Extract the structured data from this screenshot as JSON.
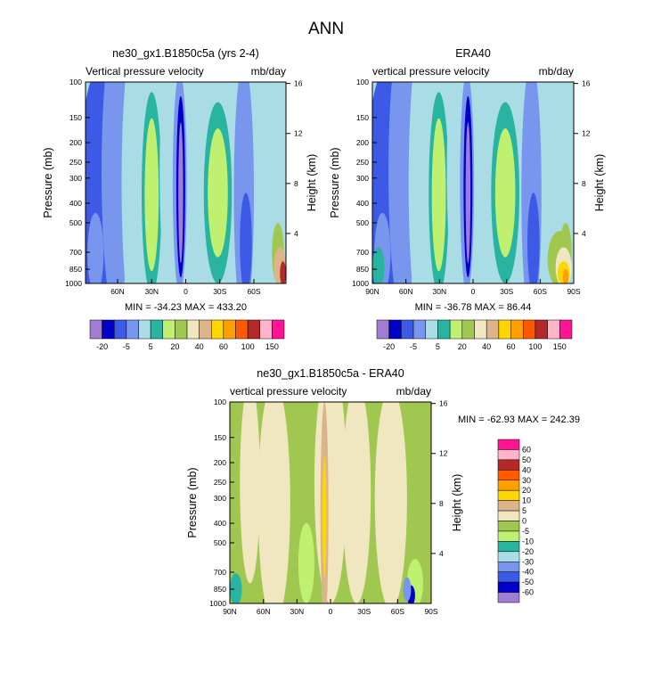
{
  "figure_title": "ANN",
  "chart_data": [
    {
      "type": "heatmap",
      "id": "model",
      "title": "ne30_gx1.B1850c5a (yrs 2-4)",
      "field_label": "Vertical pressure velocity",
      "units": "mb/day",
      "ylabel": "Pressure (mb)",
      "y2label": "Height (km)",
      "xlabel": "",
      "x_ticks": [
        "60N",
        "30N",
        "0",
        "30S",
        "60S"
      ],
      "y_ticks": [
        "100",
        "150",
        "200",
        "250",
        "300",
        "400",
        "500",
        "700",
        "850",
        "1000"
      ],
      "y2_ticks": [
        "16",
        "12",
        "8",
        "4"
      ],
      "stats": "MIN = -34.23  MAX = 433.20",
      "min": -34.23,
      "max": 433.2,
      "colorbar_levels": [
        "-20",
        "-5",
        "5",
        "20",
        "40",
        "60",
        "100",
        "150"
      ],
      "colorbar_colors": [
        "#a07cd6",
        "#0000c8",
        "#3c5ae6",
        "#7896ee",
        "#aadce6",
        "#28b4a0",
        "#c0f070",
        "#a0c850",
        "#f0e6c0",
        "#dcb48c",
        "#ffd700",
        "#ffa000",
        "#ff5a00",
        "#b42828",
        "#ffb4c8",
        "#ff1493"
      ]
    },
    {
      "type": "heatmap",
      "id": "obs",
      "title": "ERA40",
      "field_label": "vertical pressure velocity",
      "units": "mb/day",
      "ylabel": "Pressure (mb)",
      "y2label": "Height (km)",
      "x_ticks": [
        "90N",
        "60N",
        "30N",
        "0",
        "30S",
        "60S",
        "90S"
      ],
      "y_ticks": [
        "100",
        "150",
        "200",
        "250",
        "300",
        "400",
        "500",
        "700",
        "850",
        "1000"
      ],
      "y2_ticks": [
        "16",
        "12",
        "8",
        "4"
      ],
      "stats": "MIN = -36.78  MAX =  86.44",
      "min": -36.78,
      "max": 86.44,
      "colorbar_levels": [
        "-20",
        "-5",
        "5",
        "20",
        "40",
        "60",
        "100",
        "150"
      ],
      "colorbar_colors": [
        "#a07cd6",
        "#0000c8",
        "#3c5ae6",
        "#7896ee",
        "#aadce6",
        "#28b4a0",
        "#c0f070",
        "#a0c850",
        "#f0e6c0",
        "#dcb48c",
        "#ffd700",
        "#ffa000",
        "#ff5a00",
        "#b42828",
        "#ffb4c8",
        "#ff1493"
      ]
    },
    {
      "type": "heatmap",
      "id": "diff",
      "title": "ne30_gx1.B1850c5a - ERA40",
      "field_label": "vertical pressure velocity",
      "units": "mb/day",
      "ylabel": "Pressure (mb)",
      "y2label": "Height (km)",
      "x_ticks": [
        "90N",
        "60N",
        "30N",
        "0",
        "30S",
        "60S",
        "90S"
      ],
      "y_ticks": [
        "100",
        "150",
        "200",
        "250",
        "300",
        "400",
        "500",
        "700",
        "850",
        "1000"
      ],
      "y2_ticks": [
        "16",
        "12",
        "8",
        "4"
      ],
      "stats": "MIN = -62.93  MAX = 242.39",
      "min": -62.93,
      "max": 242.39,
      "colorbar_levels": [
        "60",
        "50",
        "40",
        "30",
        "20",
        "10",
        "5",
        "0",
        "-5",
        "-10",
        "-20",
        "-30",
        "-40",
        "-50",
        "-60"
      ],
      "colorbar_colors": [
        "#ff1493",
        "#ffb4c8",
        "#b42828",
        "#ff5a00",
        "#ffa000",
        "#ffd700",
        "#dcb48c",
        "#f0e6c0",
        "#a0c850",
        "#c0f070",
        "#28b4a0",
        "#aadce6",
        "#7896ee",
        "#3c5ae6",
        "#0000c8",
        "#a07cd6"
      ]
    }
  ]
}
